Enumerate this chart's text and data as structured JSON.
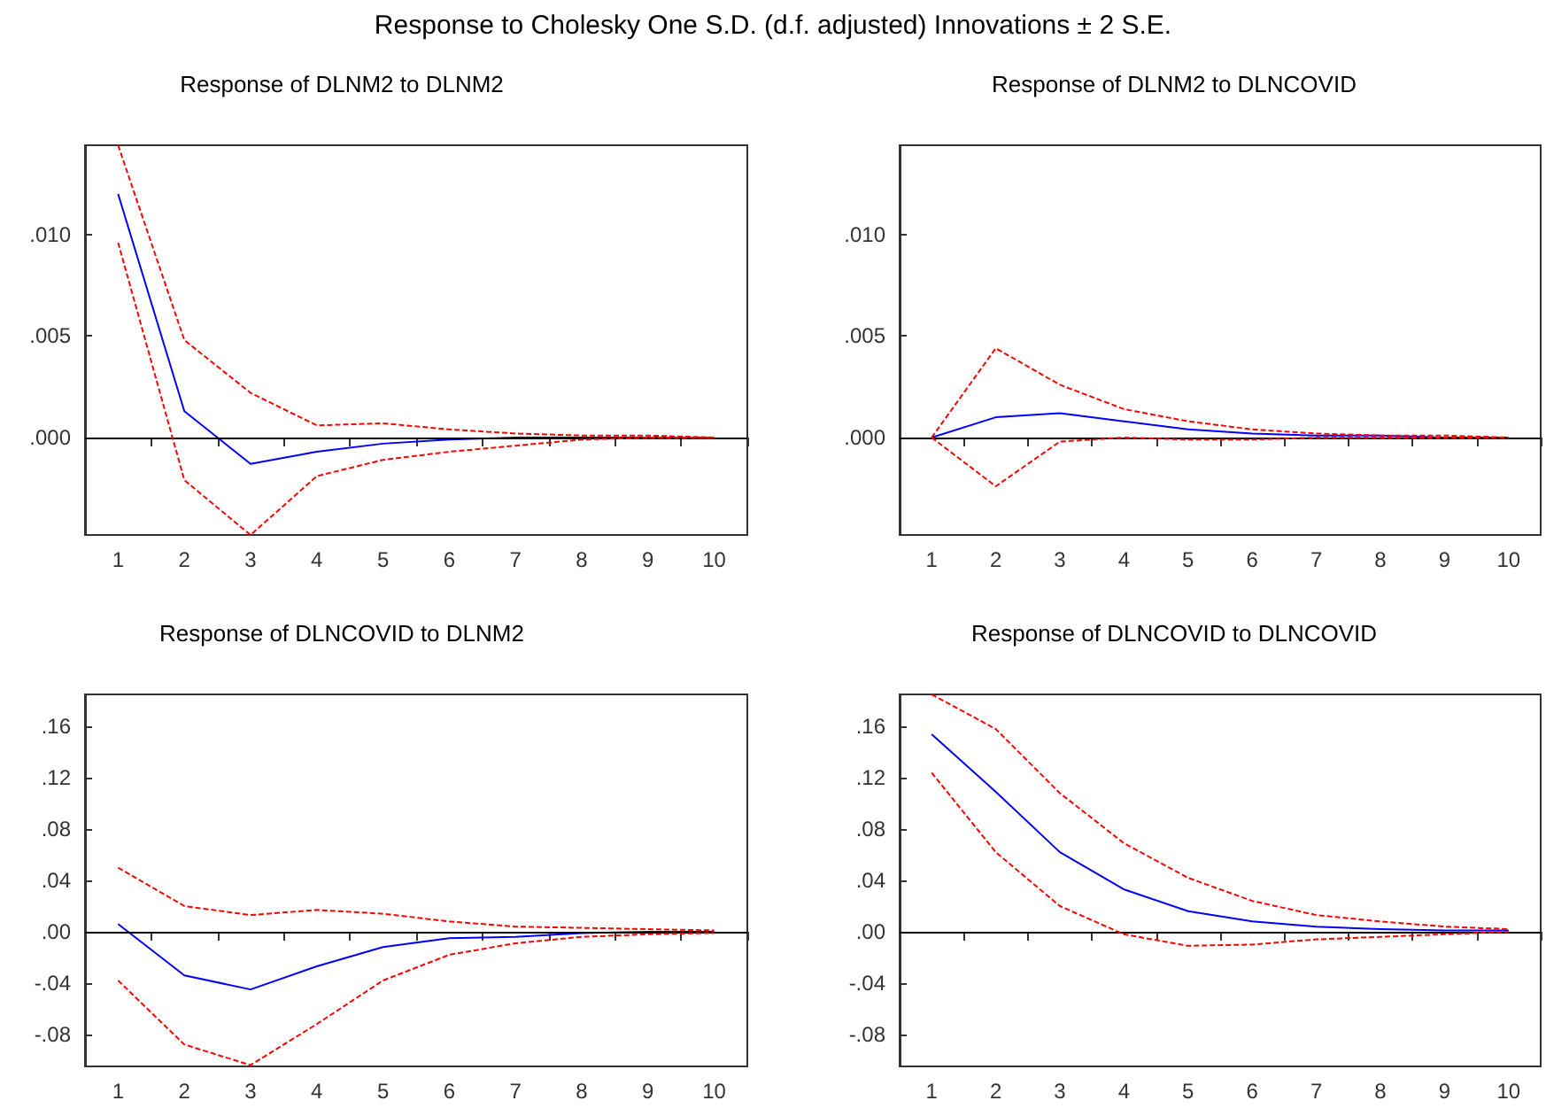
{
  "chart_data": [
    {
      "type": "line",
      "title": "Response of DLNM2 to DLNM2",
      "annotations": [
        "Response to Cholesky One S.D. (d.f. adjusted) Innovations ± 2 S.E."
      ],
      "categories": [
        "1",
        "2",
        "3",
        "4",
        "5",
        "6",
        "7",
        "8",
        "9",
        "10"
      ],
      "series": [
        {
          "color": "#0000ff",
          "line_style": "solid",
          "values": [
            0.012,
            0.0013,
            -0.0013,
            -0.0007,
            -0.0003,
            -0.0001,
            0,
            0,
            0,
            0
          ]
        },
        {
          "color": "#ff0000",
          "line_style": "dashed",
          "values": [
            0.0144,
            0.0048,
            0.0022,
            0.0006,
            0.0007,
            0.0004,
            0.0002,
            0.0001,
            0.0001,
            0
          ]
        },
        {
          "color": "#ff0000",
          "line_style": "dashed",
          "values": [
            0.0096,
            -0.0021,
            -0.0048,
            -0.0019,
            -0.0011,
            -0.0007,
            -0.0004,
            -0.0001,
            0,
            0
          ]
        }
      ],
      "ylim": [
        -0.0048,
        0.0144
      ],
      "yticks": [
        {
          "value": 0,
          "label": ".000"
        },
        {
          "value": 0.005,
          "label": ".005"
        },
        {
          "value": 0.01,
          "label": ".010"
        }
      ],
      "ref_lines": [
        {
          "axis": "y",
          "value": 0,
          "color": "#000000"
        }
      ],
      "marker": "none",
      "grid": false
    },
    {
      "type": "line",
      "title": "Response of DLNM2 to DLNCOVID",
      "categories": [
        "1",
        "2",
        "3",
        "4",
        "5",
        "6",
        "7",
        "8",
        "9",
        "10"
      ],
      "series": [
        {
          "color": "#0000ff",
          "line_style": "solid",
          "values": [
            0,
            0.001,
            0.0012,
            0.0008,
            0.0004,
            0.0002,
            0.0001,
            0.0001,
            0,
            0
          ]
        },
        {
          "color": "#ff0000",
          "line_style": "dashed",
          "values": [
            0,
            0.0044,
            0.0026,
            0.0014,
            0.0008,
            0.0004,
            0.0002,
            0.0001,
            0.0001,
            0
          ]
        },
        {
          "color": "#ff0000",
          "line_style": "dashed",
          "values": [
            0,
            -0.0024,
            -0.0002,
            0,
            -0.0001,
            -0.0001,
            0,
            0,
            0,
            0
          ]
        }
      ],
      "ylim": [
        -0.0048,
        0.0144
      ],
      "yticks": [
        {
          "value": 0,
          "label": ".000"
        },
        {
          "value": 0.005,
          "label": ".005"
        },
        {
          "value": 0.01,
          "label": ".010"
        }
      ],
      "ref_lines": [
        {
          "axis": "y",
          "value": 0,
          "color": "#000000"
        }
      ],
      "marker": "none",
      "grid": false
    },
    {
      "type": "line",
      "title": "Response of DLNCOVID to DLNM2",
      "categories": [
        "1",
        "2",
        "3",
        "4",
        "5",
        "6",
        "7",
        "8",
        "9",
        "10"
      ],
      "series": [
        {
          "color": "#0000ff",
          "line_style": "solid",
          "values": [
            0.006,
            -0.034,
            -0.045,
            -0.027,
            -0.012,
            -0.005,
            -0.004,
            -0.001,
            0,
            0
          ]
        },
        {
          "color": "#ff0000",
          "line_style": "dashed",
          "values": [
            0.05,
            0.02,
            0.013,
            0.017,
            0.014,
            0.008,
            0.004,
            0.003,
            0.002,
            0.001
          ]
        },
        {
          "color": "#ff0000",
          "line_style": "dashed",
          "values": [
            -0.038,
            -0.088,
            -0.104,
            -0.072,
            -0.038,
            -0.018,
            -0.009,
            -0.004,
            -0.002,
            -0.001
          ]
        }
      ],
      "ylim": [
        -0.105,
        0.185
      ],
      "yticks": [
        {
          "value": -0.08,
          "label": "-.08"
        },
        {
          "value": -0.04,
          "label": "-.04"
        },
        {
          "value": 0,
          "label": ".00"
        },
        {
          "value": 0.04,
          "label": ".04"
        },
        {
          "value": 0.08,
          "label": ".08"
        },
        {
          "value": 0.12,
          "label": ".12"
        },
        {
          "value": 0.16,
          "label": ".16"
        }
      ],
      "ref_lines": [
        {
          "axis": "y",
          "value": 0,
          "color": "#000000"
        }
      ],
      "marker": "none",
      "grid": false
    },
    {
      "type": "line",
      "title": "Response of DLNCOVID to DLNCOVID",
      "categories": [
        "1",
        "2",
        "3",
        "4",
        "5",
        "6",
        "7",
        "8",
        "9",
        "10"
      ],
      "series": [
        {
          "color": "#0000ff",
          "line_style": "solid",
          "values": [
            0.154,
            0.109,
            0.062,
            0.033,
            0.016,
            0.008,
            0.004,
            0.002,
            0.001,
            0.001
          ]
        },
        {
          "color": "#ff0000",
          "line_style": "dashed",
          "values": [
            0.185,
            0.158,
            0.108,
            0.069,
            0.042,
            0.024,
            0.013,
            0.008,
            0.004,
            0.002
          ]
        },
        {
          "color": "#ff0000",
          "line_style": "dashed",
          "values": [
            0.124,
            0.062,
            0.02,
            -0.002,
            -0.011,
            -0.01,
            -0.006,
            -0.004,
            -0.002,
            0
          ]
        }
      ],
      "ylim": [
        -0.105,
        0.185
      ],
      "yticks": [
        {
          "value": -0.08,
          "label": "-.08"
        },
        {
          "value": -0.04,
          "label": "-.04"
        },
        {
          "value": 0,
          "label": ".00"
        },
        {
          "value": 0.04,
          "label": ".04"
        },
        {
          "value": 0.08,
          "label": ".08"
        },
        {
          "value": 0.12,
          "label": ".12"
        },
        {
          "value": 0.16,
          "label": ".16"
        }
      ],
      "ref_lines": [
        {
          "axis": "y",
          "value": 0,
          "color": "#000000"
        }
      ],
      "marker": "none",
      "grid": false
    }
  ]
}
